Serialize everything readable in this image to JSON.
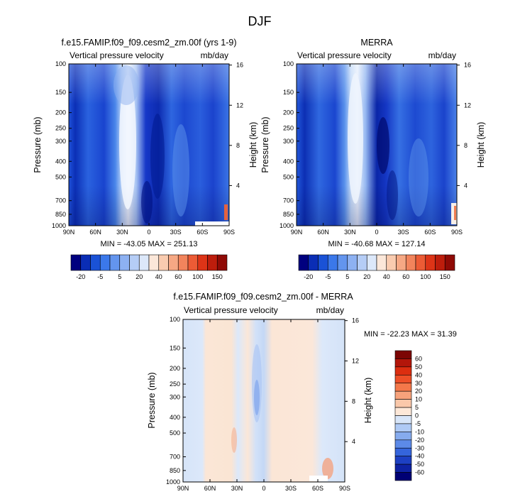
{
  "figure_title": "DJF",
  "chart_data": [
    {
      "type": "heatmap",
      "title": "f.e15.FAMIP.f09_f09.cesm2_zm.00f (yrs 1-9)",
      "left_label": "Vertical pressure velocity",
      "right_label": "mb/day",
      "ylabel": "Pressure (mb)",
      "y2label": "Height (km)",
      "x_ticks": [
        "90N",
        "60N",
        "30N",
        "0",
        "30S",
        "60S",
        "90S"
      ],
      "y_ticks": [
        "100",
        "150",
        "200",
        "250",
        "300",
        "400",
        "500",
        "700",
        "850",
        "1000"
      ],
      "y2_ticks": [
        "16",
        "12",
        "8",
        "4"
      ],
      "xlim": [
        90,
        -90
      ],
      "ylim": [
        1000,
        100
      ],
      "log_pressure_axis": true,
      "stats": "MIN = -43.05   MAX = 251.13",
      "min": -43.05,
      "max": 251.13,
      "colorbar_labels": [
        "-20",
        "-5",
        "5",
        "20",
        "40",
        "60",
        "100",
        "150"
      ],
      "colorbar_colors": [
        "#00007f",
        "#0a2db5",
        "#1a52d6",
        "#3b78ea",
        "#6395ee",
        "#8db1f2",
        "#b5cdf6",
        "#dce8fa",
        "#fbe7d9",
        "#f9cbaf",
        "#f6a884",
        "#f2845c",
        "#ec5b35",
        "#dd3417",
        "#bd1d0c",
        "#8f0a05"
      ],
      "colorbar_orientation": "horizontal"
    },
    {
      "type": "heatmap",
      "title": "MERRA",
      "left_label": "Vertical pressure velocity",
      "right_label": "mb/day",
      "ylabel": "Pressure (mb)",
      "y2label": "Height (km)",
      "x_ticks": [
        "90N",
        "60N",
        "30N",
        "0",
        "30S",
        "60S",
        "90S"
      ],
      "y_ticks": [
        "100",
        "150",
        "200",
        "250",
        "300",
        "400",
        "500",
        "700",
        "850",
        "1000"
      ],
      "y2_ticks": [
        "16",
        "12",
        "8",
        "4"
      ],
      "xlim": [
        90,
        -90
      ],
      "ylim": [
        1000,
        100
      ],
      "log_pressure_axis": true,
      "stats": "MIN = -40.68   MAX = 127.14",
      "min": -40.68,
      "max": 127.14,
      "colorbar_labels": [
        "-20",
        "-5",
        "5",
        "20",
        "40",
        "60",
        "100",
        "150"
      ],
      "colorbar_colors": [
        "#00007f",
        "#0a2db5",
        "#1a52d6",
        "#3b78ea",
        "#6395ee",
        "#8db1f2",
        "#b5cdf6",
        "#dce8fa",
        "#fbe7d9",
        "#f9cbaf",
        "#f6a884",
        "#f2845c",
        "#ec5b35",
        "#dd3417",
        "#bd1d0c",
        "#8f0a05"
      ],
      "colorbar_orientation": "horizontal"
    },
    {
      "type": "heatmap",
      "title": "f.e15.FAMIP.f09_f09.cesm2_zm.00f - MERRA",
      "left_label": "Vertical pressure velocity",
      "right_label": "mb/day",
      "ylabel": "Pressure (mb)",
      "y2label": "Height (km)",
      "x_ticks": [
        "90N",
        "60N",
        "30N",
        "0",
        "30S",
        "60S",
        "90S"
      ],
      "y_ticks": [
        "100",
        "150",
        "200",
        "250",
        "300",
        "400",
        "500",
        "700",
        "850",
        "1000"
      ],
      "y2_ticks": [
        "16",
        "12",
        "8",
        "4"
      ],
      "xlim": [
        90,
        -90
      ],
      "ylim": [
        1000,
        100
      ],
      "log_pressure_axis": true,
      "stats": "MIN = -22.23   MAX = 31.39",
      "min": -22.23,
      "max": 31.39,
      "colorbar_labels": [
        "60",
        "50",
        "40",
        "30",
        "20",
        "10",
        "5",
        "0",
        "-5",
        "-10",
        "-20",
        "-30",
        "-40",
        "-50",
        "-60"
      ],
      "colorbar_colors": [
        "#7c0504",
        "#b3160a",
        "#dc2e10",
        "#ed4f28",
        "#f4784a",
        "#f7a27b",
        "#fac8aa",
        "#fde8d8",
        "#d8e6f9",
        "#afcaf5",
        "#86abee",
        "#5c8ae8",
        "#3565dc",
        "#1d40c3",
        "#0e22a3",
        "#000074"
      ],
      "colorbar_orientation": "vertical"
    }
  ]
}
